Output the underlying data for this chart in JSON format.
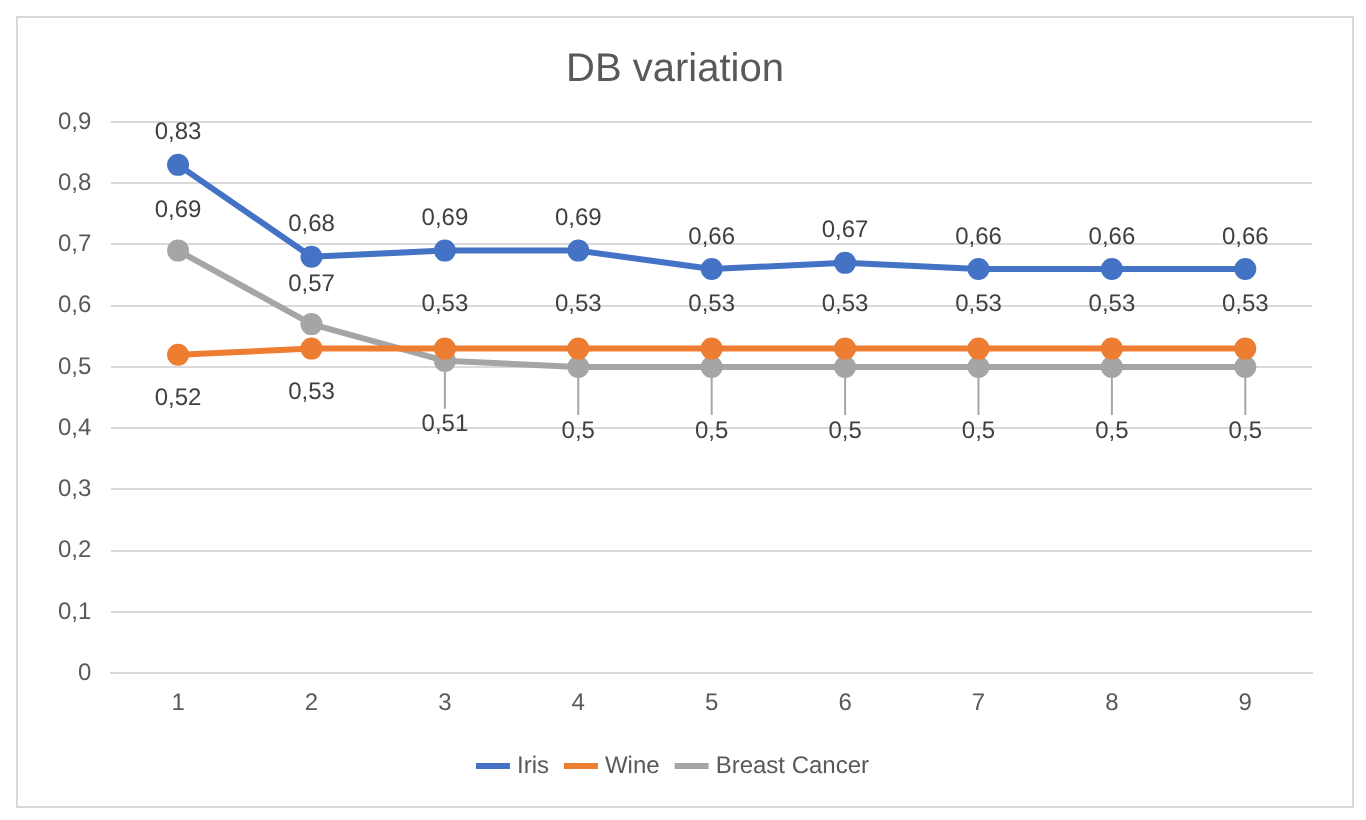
{
  "chart_data": {
    "type": "line",
    "title": "DB variation",
    "categories": [
      "1",
      "2",
      "3",
      "4",
      "5",
      "6",
      "7",
      "8",
      "9"
    ],
    "series": [
      {
        "name": "Iris",
        "color": "#4472c4",
        "values": [
          0.83,
          0.68,
          0.69,
          0.69,
          0.66,
          0.67,
          0.66,
          0.66,
          0.66
        ],
        "value_labels": [
          "0,83",
          "0,68",
          "0,69",
          "0,69",
          "0,66",
          "0,67",
          "0,66",
          "0,66",
          "0,66"
        ]
      },
      {
        "name": "Wine",
        "color": "#ed7d31",
        "values": [
          0.52,
          0.53,
          0.53,
          0.53,
          0.53,
          0.53,
          0.53,
          0.53,
          0.53
        ],
        "value_labels": [
          "0,52",
          "0,53",
          "0,53",
          "0,53",
          "0,53",
          "0,53",
          "0,53",
          "0,53",
          "0,53"
        ]
      },
      {
        "name": "Breast Cancer",
        "color": "#a5a5a5",
        "values": [
          0.69,
          0.57,
          0.51,
          0.5,
          0.5,
          0.5,
          0.5,
          0.5,
          0.5
        ],
        "value_labels": [
          "0,69",
          "0,57",
          "0,51",
          "0,5",
          "0,5",
          "0,5",
          "0,5",
          "0,5",
          "0,5"
        ]
      }
    ],
    "ylim": [
      0,
      0.9
    ],
    "yticks": [
      {
        "value": 0,
        "label": "0"
      },
      {
        "value": 0.1,
        "label": "0,1"
      },
      {
        "value": 0.2,
        "label": "0,2"
      },
      {
        "value": 0.3,
        "label": "0,3"
      },
      {
        "value": 0.4,
        "label": "0,4"
      },
      {
        "value": 0.5,
        "label": "0,5"
      },
      {
        "value": 0.6,
        "label": "0,6"
      },
      {
        "value": 0.7,
        "label": "0,7"
      },
      {
        "value": 0.8,
        "label": "0,8"
      },
      {
        "value": 0.9,
        "label": "0,9"
      }
    ],
    "grid": "y",
    "legend": "bottom",
    "marker": "circle",
    "line_style": "solid"
  }
}
